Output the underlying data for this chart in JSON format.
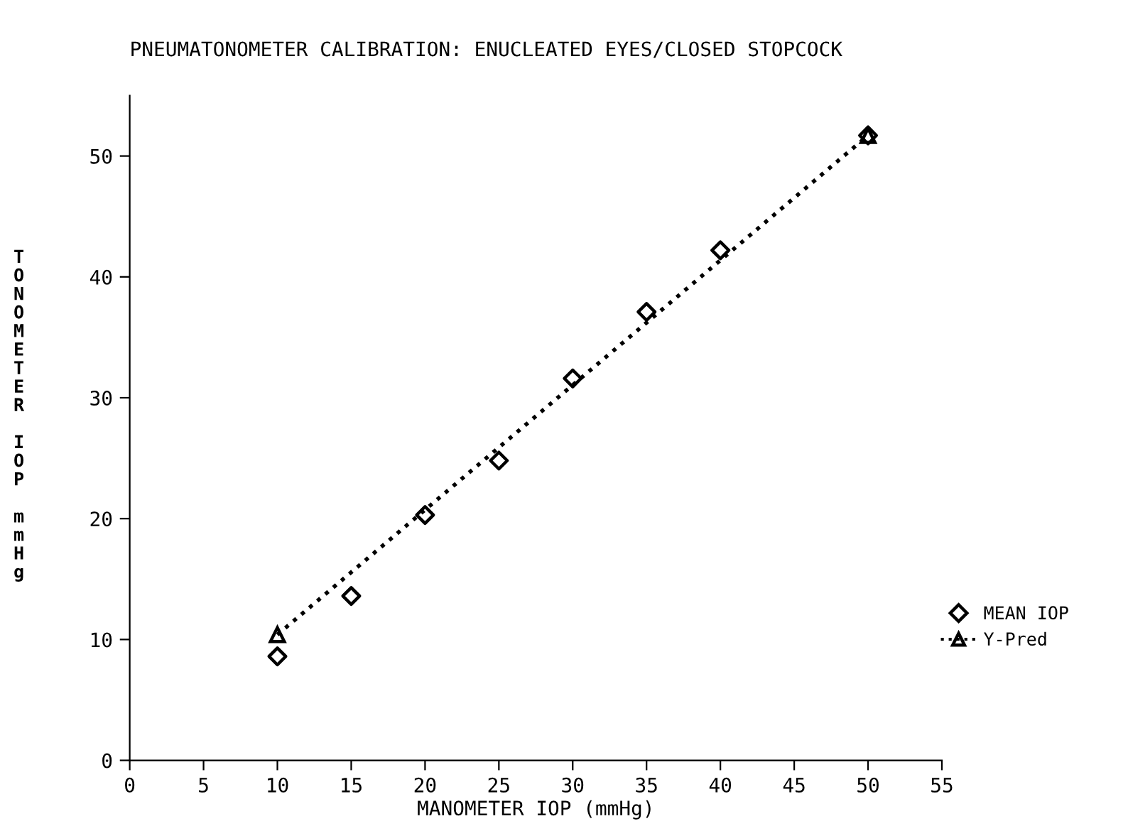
{
  "chart_data": {
    "type": "scatter",
    "title": "PNEUMATONOMETER CALIBRATION: ENUCLEATED EYES/CLOSED STOPCOCK",
    "xlabel": "MANOMETER IOP (mmHg)",
    "ylabel": "TONOMETER IOP mmHg",
    "xlim": [
      0,
      55
    ],
    "xticks": [
      0,
      5,
      10,
      15,
      20,
      25,
      30,
      35,
      40,
      45,
      50,
      55
    ],
    "ylim": [
      0,
      55
    ],
    "yticks": [
      0,
      10,
      20,
      30,
      40,
      50
    ],
    "grid": false,
    "legend": "right",
    "series": [
      {
        "name": "MEAN IOP",
        "marker": "diamond",
        "color": "#000000",
        "x": [
          10,
          15,
          20,
          25,
          30,
          35,
          40,
          50
        ],
        "values": [
          8.6,
          13.6,
          20.3,
          24.8,
          31.6,
          37.1,
          42.2,
          51.7
        ]
      },
      {
        "name": "Y-Pred",
        "type": "line",
        "marker": "triangle",
        "line_style": "dotted",
        "color": "#000000",
        "x": [
          10,
          50
        ],
        "values": [
          10.4,
          51.7
        ]
      }
    ]
  }
}
